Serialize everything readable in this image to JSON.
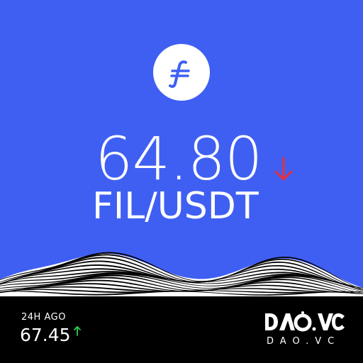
{
  "token": {
    "icon": "filecoin-logo-icon",
    "price": "64.80",
    "pair": "FIL/USDT",
    "direction": "down",
    "direction_color": "#e8303a"
  },
  "history": {
    "label": "24H AGO",
    "value": "67.45",
    "direction": "up",
    "direction_color": "#2fd14f"
  },
  "brand": {
    "logo_text": "DAO.VC",
    "url": "DAO.VC"
  },
  "colors": {
    "background_top": "#3f5ff3",
    "background_bottom": "#000000",
    "text": "#ffffff"
  }
}
